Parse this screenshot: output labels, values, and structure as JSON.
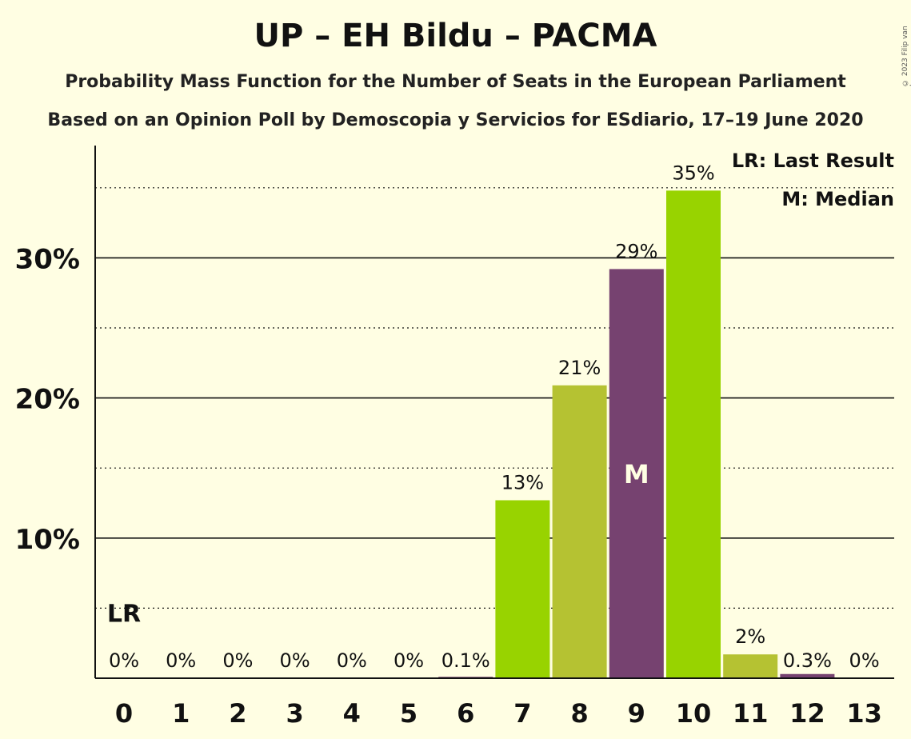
{
  "title": "UP – EH Bildu – PACMA",
  "subtitle_1": "Probability Mass Function for the Number of Seats in the European Parliament",
  "subtitle_2": "Based on an Opinion Poll by Demoscopia y Servicios for ESdiario, 17–19 June 2020",
  "copyright": "© 2023 Filip van Laenen",
  "legend": {
    "last_result": "LR: Last Result",
    "median": "M: Median"
  },
  "colors": {
    "background": "#FFFEE3",
    "bar_light_green": "#98D300",
    "bar_olive": "#B5C232",
    "bar_purple": "#764270"
  },
  "chart_data": {
    "type": "bar",
    "categories": [
      "0",
      "1",
      "2",
      "3",
      "4",
      "5",
      "6",
      "7",
      "8",
      "9",
      "10",
      "11",
      "12",
      "13"
    ],
    "values": [
      0,
      0,
      0,
      0,
      0,
      0,
      0.1,
      12.7,
      20.9,
      29.2,
      34.8,
      1.7,
      0.3,
      0
    ],
    "labels": [
      "0%",
      "0%",
      "0%",
      "0%",
      "0%",
      "0%",
      "0.1%",
      "13%",
      "21%",
      "29%",
      "35%",
      "2%",
      "0.3%",
      "0%"
    ],
    "bar_colors": [
      "#98D300",
      "#B5C232",
      "#98D300",
      "#B5C232",
      "#98D300",
      "#B5C232",
      "#764270",
      "#98D300",
      "#B5C232",
      "#764270",
      "#98D300",
      "#B5C232",
      "#764270",
      "#98D300"
    ],
    "yticks": [
      10,
      20,
      30
    ],
    "ytick_labels": [
      "10%",
      "20%",
      "30%"
    ],
    "ylim": [
      0,
      37.5
    ],
    "last_result_seat": 0,
    "last_result_label": "LR",
    "median_seat": 9,
    "median_label": "M",
    "grid": "solid major lines every 10%, dotted minor lines every 5%",
    "legend_position": "top-right"
  }
}
